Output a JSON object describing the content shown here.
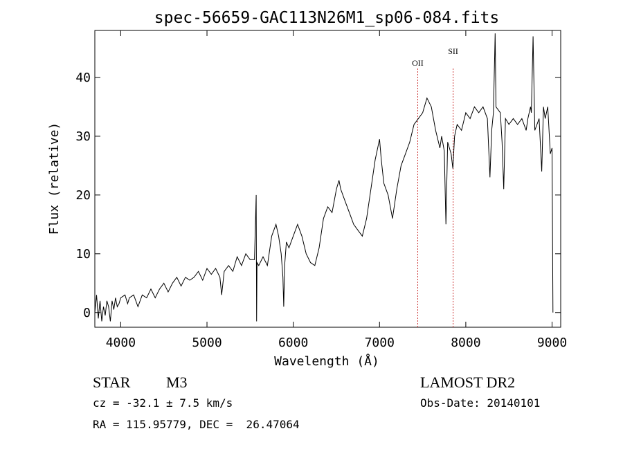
{
  "chart_data": {
    "type": "line",
    "title": "spec-56659-GAC113N26M1_sp06-084.fits",
    "xlabel": "Wavelength (Å)",
    "ylabel": "Flux (relative)",
    "xlim": [
      3700,
      9100
    ],
    "ylim": [
      -2.5,
      48
    ],
    "x_ticks": [
      4000,
      5000,
      6000,
      7000,
      8000,
      9000
    ],
    "y_ticks": [
      0,
      10,
      20,
      30,
      40
    ],
    "grid": false,
    "line_color": "#000000",
    "marker_color": "#cc3333",
    "series": [
      {
        "points": [
          [
            3700,
            0
          ],
          [
            3720,
            3
          ],
          [
            3740,
            -1
          ],
          [
            3760,
            2
          ],
          [
            3780,
            -1.5
          ],
          [
            3800,
            1
          ],
          [
            3820,
            -0.5
          ],
          [
            3840,
            2
          ],
          [
            3860,
            1
          ],
          [
            3880,
            -1.5
          ],
          [
            3900,
            2
          ],
          [
            3920,
            0.5
          ],
          [
            3940,
            2.5
          ],
          [
            3960,
            1
          ],
          [
            3980,
            1.5
          ],
          [
            4000,
            2.5
          ],
          [
            4050,
            3
          ],
          [
            4080,
            1.5
          ],
          [
            4100,
            2.5
          ],
          [
            4150,
            3
          ],
          [
            4200,
            1
          ],
          [
            4250,
            3
          ],
          [
            4300,
            2.5
          ],
          [
            4350,
            4
          ],
          [
            4400,
            2.5
          ],
          [
            4450,
            4
          ],
          [
            4500,
            5
          ],
          [
            4550,
            3.5
          ],
          [
            4600,
            5
          ],
          [
            4650,
            6
          ],
          [
            4700,
            4.5
          ],
          [
            4750,
            6
          ],
          [
            4800,
            5.5
          ],
          [
            4850,
            6
          ],
          [
            4900,
            7
          ],
          [
            4950,
            5.5
          ],
          [
            5000,
            7.5
          ],
          [
            5050,
            6.5
          ],
          [
            5100,
            7.5
          ],
          [
            5150,
            6
          ],
          [
            5170,
            3
          ],
          [
            5200,
            7
          ],
          [
            5250,
            8
          ],
          [
            5300,
            7
          ],
          [
            5350,
            9.5
          ],
          [
            5400,
            8
          ],
          [
            5450,
            10
          ],
          [
            5500,
            9
          ],
          [
            5550,
            9
          ],
          [
            5570,
            20
          ],
          [
            5575,
            -1.5
          ],
          [
            5580,
            8.5
          ],
          [
            5600,
            8
          ],
          [
            5650,
            9.5
          ],
          [
            5700,
            8
          ],
          [
            5750,
            13
          ],
          [
            5800,
            15
          ],
          [
            5830,
            13
          ],
          [
            5860,
            10
          ],
          [
            5880,
            6
          ],
          [
            5890,
            1
          ],
          [
            5900,
            8
          ],
          [
            5920,
            12
          ],
          [
            5950,
            11
          ],
          [
            6000,
            13
          ],
          [
            6050,
            15
          ],
          [
            6100,
            13
          ],
          [
            6150,
            10
          ],
          [
            6200,
            8.5
          ],
          [
            6250,
            8
          ],
          [
            6300,
            11
          ],
          [
            6350,
            16
          ],
          [
            6400,
            18
          ],
          [
            6450,
            17
          ],
          [
            6500,
            21
          ],
          [
            6530,
            22.5
          ],
          [
            6550,
            21
          ],
          [
            6600,
            19
          ],
          [
            6650,
            17
          ],
          [
            6700,
            15
          ],
          [
            6750,
            14
          ],
          [
            6800,
            13
          ],
          [
            6850,
            16
          ],
          [
            6900,
            21
          ],
          [
            6950,
            26
          ],
          [
            7000,
            29.5
          ],
          [
            7020,
            26
          ],
          [
            7050,
            22
          ],
          [
            7100,
            20
          ],
          [
            7150,
            16
          ],
          [
            7200,
            21
          ],
          [
            7250,
            25
          ],
          [
            7300,
            27
          ],
          [
            7350,
            29
          ],
          [
            7400,
            32
          ],
          [
            7450,
            33
          ],
          [
            7500,
            34
          ],
          [
            7550,
            36.5
          ],
          [
            7600,
            35
          ],
          [
            7650,
            31
          ],
          [
            7700,
            28
          ],
          [
            7720,
            30
          ],
          [
            7750,
            27.5
          ],
          [
            7770,
            15
          ],
          [
            7790,
            29
          ],
          [
            7830,
            27
          ],
          [
            7850,
            24.5
          ],
          [
            7870,
            30
          ],
          [
            7900,
            32
          ],
          [
            7950,
            31
          ],
          [
            8000,
            34
          ],
          [
            8050,
            33
          ],
          [
            8100,
            35
          ],
          [
            8150,
            34
          ],
          [
            8200,
            35
          ],
          [
            8250,
            33
          ],
          [
            8280,
            23
          ],
          [
            8300,
            31
          ],
          [
            8320,
            34
          ],
          [
            8340,
            47.5
          ],
          [
            8350,
            35
          ],
          [
            8400,
            34
          ],
          [
            8420,
            29
          ],
          [
            8440,
            21
          ],
          [
            8460,
            33
          ],
          [
            8500,
            32
          ],
          [
            8550,
            33
          ],
          [
            8600,
            32
          ],
          [
            8650,
            33
          ],
          [
            8700,
            31
          ],
          [
            8720,
            33
          ],
          [
            8750,
            35
          ],
          [
            8760,
            34
          ],
          [
            8780,
            47
          ],
          [
            8800,
            31
          ],
          [
            8850,
            33
          ],
          [
            8880,
            24
          ],
          [
            8900,
            35
          ],
          [
            8920,
            33
          ],
          [
            8950,
            35
          ],
          [
            8980,
            27
          ],
          [
            9000,
            28
          ],
          [
            9010,
            0
          ]
        ]
      }
    ],
    "annotations": [
      {
        "label": "OII",
        "x": 7443
      },
      {
        "label": "SII",
        "x": 7853
      }
    ]
  },
  "footer": {
    "object_class": "STAR",
    "subclass": "M3",
    "survey": "LAMOST DR2",
    "cz": "cz = -32.1 ± 7.5 km/s",
    "obs_date": "Obs-Date: 20140101",
    "coords": "RA = 115.95779, DEC =  26.47064"
  }
}
